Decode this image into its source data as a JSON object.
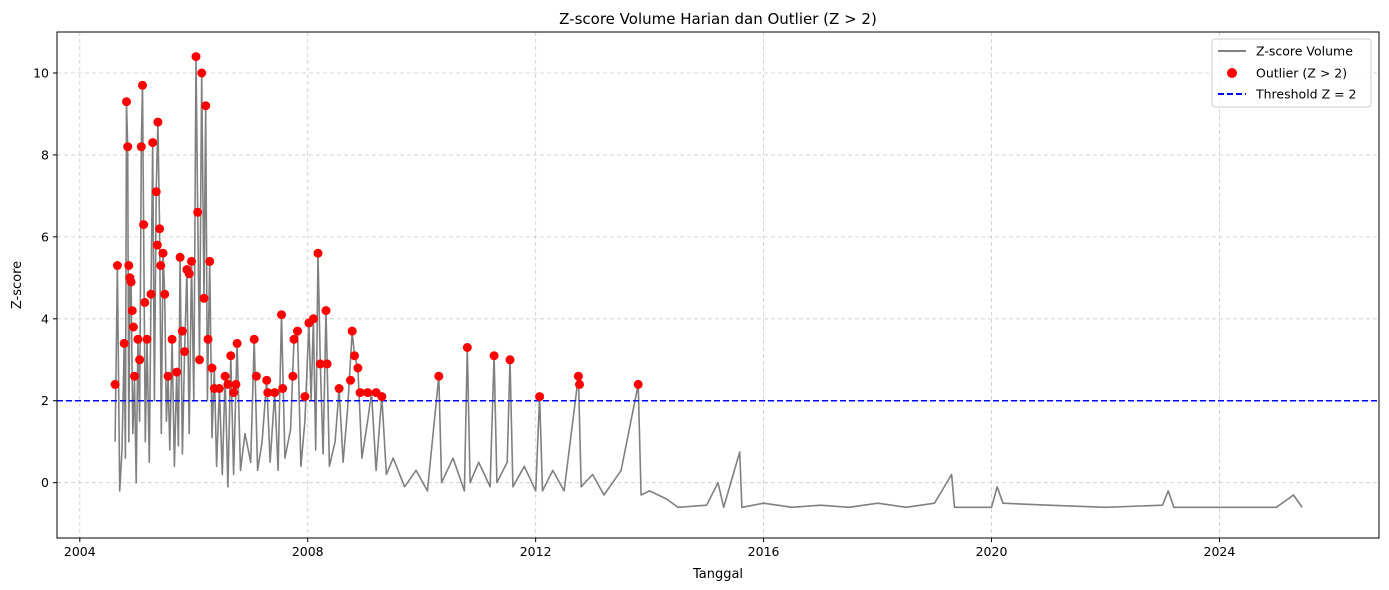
{
  "chart_data": {
    "type": "line",
    "title": "Z-score Volume Harian dan Outlier (Z > 2)",
    "xlabel": "Tanggal",
    "ylabel": "Z-score",
    "xlim": [
      2003.6,
      2026.8
    ],
    "ylim": [
      -1.35,
      11.0
    ],
    "xticks": [
      2004,
      2008,
      2012,
      2016,
      2020,
      2024
    ],
    "yticks": [
      0,
      2,
      4,
      6,
      8,
      10
    ],
    "grid": true,
    "legend_position": "top-right",
    "threshold": 2,
    "colors": {
      "series": "#808080",
      "outlier": "#ff0000",
      "threshold": "#0000ff",
      "grid": "#cccccc"
    },
    "series": [
      {
        "name": "Z-score Volume",
        "type": "line",
        "points": [
          [
            2004.62,
            1.0
          ],
          [
            2004.66,
            5.3
          ],
          [
            2004.7,
            -0.2
          ],
          [
            2004.74,
            0.8
          ],
          [
            2004.78,
            3.4
          ],
          [
            2004.8,
            0.6
          ],
          [
            2004.82,
            9.3
          ],
          [
            2004.84,
            8.2
          ],
          [
            2004.86,
            1.0
          ],
          [
            2004.88,
            5.0
          ],
          [
            2004.9,
            4.9
          ],
          [
            2004.93,
            1.2
          ],
          [
            2004.96,
            2.5
          ],
          [
            2004.99,
            -0.0
          ],
          [
            2005.02,
            3.5
          ],
          [
            2005.05,
            1.5
          ],
          [
            2005.08,
            8.2
          ],
          [
            2005.1,
            9.7
          ],
          [
            2005.12,
            6.3
          ],
          [
            2005.15,
            1.0
          ],
          [
            2005.18,
            3.5
          ],
          [
            2005.22,
            0.5
          ],
          [
            2005.25,
            4.6
          ],
          [
            2005.28,
            8.3
          ],
          [
            2005.31,
            2.0
          ],
          [
            2005.34,
            7.1
          ],
          [
            2005.37,
            8.8
          ],
          [
            2005.4,
            6.2
          ],
          [
            2005.43,
            1.2
          ],
          [
            2005.46,
            5.6
          ],
          [
            2005.49,
            4.6
          ],
          [
            2005.52,
            1.5
          ],
          [
            2005.55,
            2.6
          ],
          [
            2005.58,
            0.8
          ],
          [
            2005.62,
            3.5
          ],
          [
            2005.66,
            0.4
          ],
          [
            2005.7,
            2.7
          ],
          [
            2005.73,
            0.9
          ],
          [
            2005.76,
            5.5
          ],
          [
            2005.8,
            0.7
          ],
          [
            2005.84,
            3.2
          ],
          [
            2005.88,
            5.2
          ],
          [
            2005.92,
            1.2
          ],
          [
            2005.96,
            5.4
          ],
          [
            2006.0,
            2.0
          ],
          [
            2006.04,
            10.4
          ],
          [
            2006.07,
            6.6
          ],
          [
            2006.1,
            3.0
          ],
          [
            2006.14,
            10.0
          ],
          [
            2006.18,
            4.5
          ],
          [
            2006.21,
            9.2
          ],
          [
            2006.24,
            2.0
          ],
          [
            2006.28,
            5.4
          ],
          [
            2006.32,
            1.1
          ],
          [
            2006.36,
            2.8
          ],
          [
            2006.4,
            0.4
          ],
          [
            2006.45,
            2.3
          ],
          [
            2006.5,
            0.2
          ],
          [
            2006.55,
            2.6
          ],
          [
            2006.6,
            -0.1
          ],
          [
            2006.65,
            3.1
          ],
          [
            2006.7,
            0.2
          ],
          [
            2006.76,
            3.4
          ],
          [
            2006.82,
            0.3
          ],
          [
            2006.9,
            1.2
          ],
          [
            2007.0,
            0.5
          ],
          [
            2007.06,
            3.5
          ],
          [
            2007.12,
            0.3
          ],
          [
            2007.2,
            1.0
          ],
          [
            2007.28,
            2.5
          ],
          [
            2007.34,
            0.5
          ],
          [
            2007.42,
            2.2
          ],
          [
            2007.48,
            0.3
          ],
          [
            2007.54,
            4.1
          ],
          [
            2007.6,
            0.6
          ],
          [
            2007.7,
            1.3
          ],
          [
            2007.76,
            3.5
          ],
          [
            2007.82,
            3.7
          ],
          [
            2007.88,
            0.4
          ],
          [
            2007.95,
            1.5
          ],
          [
            2008.02,
            3.9
          ],
          [
            2008.06,
            2.0
          ],
          [
            2008.1,
            4.0
          ],
          [
            2008.14,
            0.8
          ],
          [
            2008.18,
            5.6
          ],
          [
            2008.22,
            2.9
          ],
          [
            2008.27,
            0.7
          ],
          [
            2008.32,
            4.2
          ],
          [
            2008.38,
            0.4
          ],
          [
            2008.48,
            1.0
          ],
          [
            2008.55,
            2.3
          ],
          [
            2008.62,
            0.5
          ],
          [
            2008.7,
            1.8
          ],
          [
            2008.78,
            3.7
          ],
          [
            2008.82,
            3.1
          ],
          [
            2008.88,
            2.8
          ],
          [
            2008.95,
            0.6
          ],
          [
            2009.05,
            1.5
          ],
          [
            2009.12,
            2.2
          ],
          [
            2009.2,
            0.3
          ],
          [
            2009.3,
            2.1
          ],
          [
            2009.38,
            0.2
          ],
          [
            2009.5,
            0.6
          ],
          [
            2009.7,
            -0.1
          ],
          [
            2009.9,
            0.3
          ],
          [
            2010.1,
            -0.2
          ],
          [
            2010.3,
            2.6
          ],
          [
            2010.35,
            0.0
          ],
          [
            2010.55,
            0.6
          ],
          [
            2010.75,
            -0.2
          ],
          [
            2010.8,
            3.3
          ],
          [
            2010.85,
            0.0
          ],
          [
            2011.0,
            0.5
          ],
          [
            2011.2,
            -0.1
          ],
          [
            2011.27,
            3.1
          ],
          [
            2011.32,
            0.0
          ],
          [
            2011.5,
            0.5
          ],
          [
            2011.55,
            3.0
          ],
          [
            2011.6,
            -0.1
          ],
          [
            2011.8,
            0.4
          ],
          [
            2012.0,
            -0.2
          ],
          [
            2012.07,
            2.1
          ],
          [
            2012.12,
            -0.2
          ],
          [
            2012.3,
            0.3
          ],
          [
            2012.5,
            -0.2
          ],
          [
            2012.75,
            2.6
          ],
          [
            2012.8,
            -0.1
          ],
          [
            2013.0,
            0.2
          ],
          [
            2013.2,
            -0.3
          ],
          [
            2013.5,
            0.3
          ],
          [
            2013.8,
            2.4
          ],
          [
            2013.85,
            -0.3
          ],
          [
            2014.0,
            -0.2
          ],
          [
            2014.3,
            -0.4
          ],
          [
            2014.5,
            -0.6
          ],
          [
            2015.0,
            -0.55
          ],
          [
            2015.2,
            0.0
          ],
          [
            2015.3,
            -0.6
          ],
          [
            2015.58,
            0.75
          ],
          [
            2015.62,
            -0.6
          ],
          [
            2016.0,
            -0.5
          ],
          [
            2016.5,
            -0.6
          ],
          [
            2017.0,
            -0.55
          ],
          [
            2017.5,
            -0.6
          ],
          [
            2018.0,
            -0.5
          ],
          [
            2018.5,
            -0.6
          ],
          [
            2019.0,
            -0.5
          ],
          [
            2019.3,
            0.2
          ],
          [
            2019.35,
            -0.6
          ],
          [
            2020.0,
            -0.6
          ],
          [
            2020.1,
            -0.1
          ],
          [
            2020.2,
            -0.5
          ],
          [
            2021.0,
            -0.55
          ],
          [
            2022.0,
            -0.6
          ],
          [
            2023.0,
            -0.55
          ],
          [
            2023.1,
            -0.2
          ],
          [
            2023.2,
            -0.6
          ],
          [
            2024.0,
            -0.6
          ],
          [
            2025.0,
            -0.6
          ],
          [
            2025.3,
            -0.3
          ],
          [
            2025.45,
            -0.6
          ]
        ]
      },
      {
        "name": "Outlier (Z > 2)",
        "type": "scatter",
        "points": [
          [
            2004.62,
            2.4
          ],
          [
            2004.66,
            5.3
          ],
          [
            2004.78,
            3.4
          ],
          [
            2004.82,
            9.3
          ],
          [
            2004.84,
            8.2
          ],
          [
            2004.86,
            5.3
          ],
          [
            2004.88,
            5.0
          ],
          [
            2004.9,
            4.9
          ],
          [
            2004.92,
            4.2
          ],
          [
            2004.94,
            3.8
          ],
          [
            2004.96,
            2.6
          ],
          [
            2005.02,
            3.5
          ],
          [
            2005.05,
            3.0
          ],
          [
            2005.08,
            8.2
          ],
          [
            2005.1,
            9.7
          ],
          [
            2005.12,
            6.3
          ],
          [
            2005.14,
            4.4
          ],
          [
            2005.18,
            3.5
          ],
          [
            2005.25,
            4.6
          ],
          [
            2005.28,
            8.3
          ],
          [
            2005.34,
            7.1
          ],
          [
            2005.36,
            5.8
          ],
          [
            2005.37,
            8.8
          ],
          [
            2005.4,
            6.2
          ],
          [
            2005.42,
            5.3
          ],
          [
            2005.46,
            5.6
          ],
          [
            2005.49,
            4.6
          ],
          [
            2005.55,
            2.6
          ],
          [
            2005.62,
            3.5
          ],
          [
            2005.7,
            2.7
          ],
          [
            2005.76,
            5.5
          ],
          [
            2005.8,
            3.7
          ],
          [
            2005.84,
            3.2
          ],
          [
            2005.88,
            5.2
          ],
          [
            2005.92,
            5.1
          ],
          [
            2005.96,
            5.4
          ],
          [
            2006.04,
            10.4
          ],
          [
            2006.07,
            6.6
          ],
          [
            2006.1,
            3.0
          ],
          [
            2006.14,
            10.0
          ],
          [
            2006.18,
            4.5
          ],
          [
            2006.21,
            9.2
          ],
          [
            2006.25,
            3.5
          ],
          [
            2006.28,
            5.4
          ],
          [
            2006.32,
            2.8
          ],
          [
            2006.36,
            2.3
          ],
          [
            2006.45,
            2.3
          ],
          [
            2006.55,
            2.6
          ],
          [
            2006.6,
            2.4
          ],
          [
            2006.65,
            3.1
          ],
          [
            2006.7,
            2.2
          ],
          [
            2006.74,
            2.4
          ],
          [
            2006.76,
            3.4
          ],
          [
            2007.06,
            3.5
          ],
          [
            2007.1,
            2.6
          ],
          [
            2007.28,
            2.5
          ],
          [
            2007.3,
            2.2
          ],
          [
            2007.42,
            2.2
          ],
          [
            2007.54,
            4.1
          ],
          [
            2007.56,
            2.3
          ],
          [
            2007.74,
            2.6
          ],
          [
            2007.76,
            3.5
          ],
          [
            2007.82,
            3.7
          ],
          [
            2007.95,
            2.1
          ],
          [
            2008.02,
            3.9
          ],
          [
            2008.1,
            4.0
          ],
          [
            2008.18,
            5.6
          ],
          [
            2008.22,
            2.9
          ],
          [
            2008.32,
            4.2
          ],
          [
            2008.34,
            2.9
          ],
          [
            2008.55,
            2.3
          ],
          [
            2008.75,
            2.5
          ],
          [
            2008.78,
            3.7
          ],
          [
            2008.82,
            3.1
          ],
          [
            2008.88,
            2.8
          ],
          [
            2008.92,
            2.2
          ],
          [
            2009.05,
            2.2
          ],
          [
            2009.2,
            2.2
          ],
          [
            2009.3,
            2.1
          ],
          [
            2010.3,
            2.6
          ],
          [
            2010.8,
            3.3
          ],
          [
            2011.27,
            3.1
          ],
          [
            2011.55,
            3.0
          ],
          [
            2012.07,
            2.1
          ],
          [
            2012.75,
            2.6
          ],
          [
            2012.77,
            2.4
          ],
          [
            2013.8,
            2.4
          ]
        ]
      },
      {
        "name": "Threshold Z = 2",
        "type": "hline",
        "value": 2
      }
    ]
  }
}
